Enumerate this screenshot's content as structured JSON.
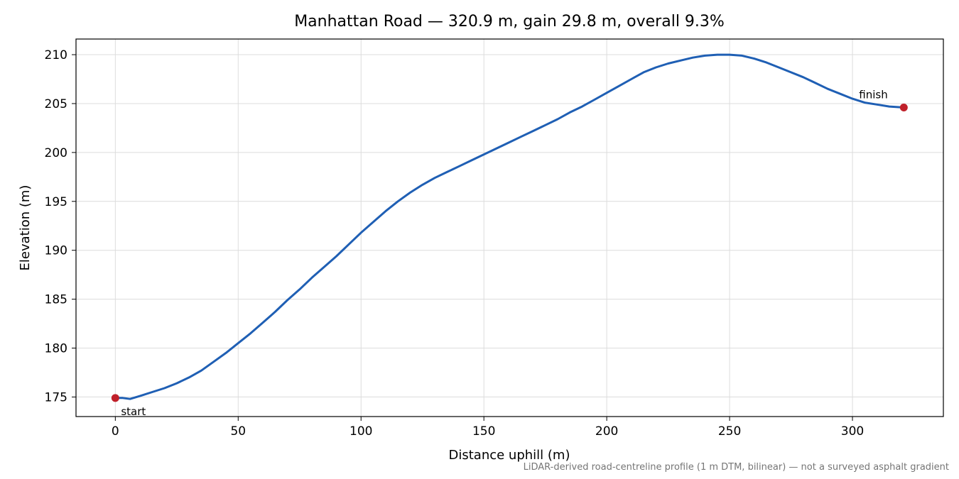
{
  "chart_data": {
    "type": "line",
    "title": "Manhattan Road — 320.9 m, gain 29.8 m, overall 9.3%",
    "xlabel": "Distance uphill (m)",
    "ylabel": "Elevation (m)",
    "xlim": [
      -16,
      337
    ],
    "ylim": [
      173,
      211.6
    ],
    "xticks": [
      0,
      50,
      100,
      150,
      200,
      250,
      300
    ],
    "yticks": [
      175,
      180,
      185,
      190,
      195,
      200,
      205,
      210
    ],
    "grid": true,
    "line_color": "#1f5fb4",
    "marker_color": "#c0202a",
    "series": [
      {
        "x": [
          0,
          3,
          6,
          10,
          15,
          20,
          25,
          30,
          35,
          40,
          45,
          50,
          55,
          60,
          65,
          70,
          75,
          80,
          85,
          90,
          95,
          100,
          105,
          110,
          115,
          120,
          125,
          130,
          135,
          140,
          145,
          150,
          155,
          160,
          165,
          170,
          175,
          180,
          185,
          190,
          195,
          200,
          205,
          210,
          215,
          220,
          225,
          230,
          235,
          240,
          245,
          250,
          255,
          260,
          265,
          270,
          275,
          280,
          285,
          290,
          295,
          300,
          305,
          310,
          315,
          320.9
        ],
        "y": [
          174.9,
          174.9,
          174.8,
          175.1,
          175.5,
          175.9,
          176.4,
          177.0,
          177.7,
          178.6,
          179.5,
          180.5,
          181.5,
          182.6,
          183.7,
          184.9,
          186.0,
          187.2,
          188.3,
          189.4,
          190.6,
          191.8,
          192.9,
          194.0,
          195.0,
          195.9,
          196.7,
          197.4,
          198.0,
          198.6,
          199.2,
          199.8,
          200.4,
          201.0,
          201.6,
          202.2,
          202.8,
          203.4,
          204.1,
          204.7,
          205.4,
          206.1,
          206.8,
          207.5,
          208.2,
          208.7,
          209.1,
          209.4,
          209.7,
          209.9,
          210.0,
          210.0,
          209.9,
          209.6,
          209.2,
          208.7,
          208.2,
          207.7,
          207.1,
          206.5,
          206.0,
          205.5,
          205.1,
          204.9,
          204.7,
          204.6
        ]
      }
    ],
    "annotations": [
      {
        "text": "start",
        "x": 0,
        "y": 174.9
      },
      {
        "text": "finish",
        "x": 320.9,
        "y": 204.6
      }
    ],
    "footnote": "LiDAR-derived road-centreline profile (1 m DTM, bilinear) — not a surveyed asphalt gradient"
  }
}
